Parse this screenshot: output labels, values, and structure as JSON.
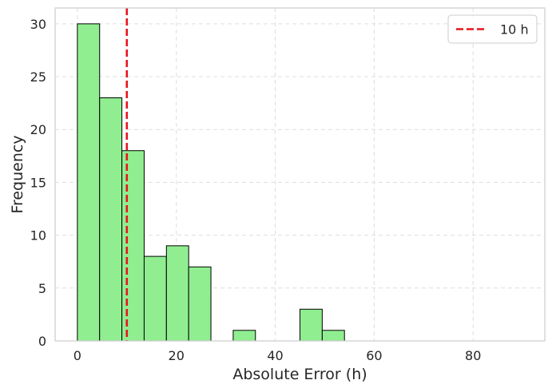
{
  "chart_data": {
    "type": "bar",
    "subtype": "histogram",
    "xlabel": "Absolute Error (h)",
    "ylabel": "Frequency",
    "xlim": [
      -4.5,
      94.5
    ],
    "ylim": [
      0,
      31.5
    ],
    "xticks": [
      0,
      20,
      40,
      60,
      80
    ],
    "yticks": [
      0,
      5,
      10,
      15,
      20,
      25,
      30
    ],
    "grid": true,
    "grid_style": "dashed",
    "bar_color": "#90ee90",
    "bar_edge_color": "#000000",
    "bins": [
      {
        "x0": 0.0,
        "x1": 4.5,
        "count": 30
      },
      {
        "x0": 4.5,
        "x1": 9.0,
        "count": 23
      },
      {
        "x0": 9.0,
        "x1": 13.5,
        "count": 18
      },
      {
        "x0": 13.5,
        "x1": 18.0,
        "count": 8
      },
      {
        "x0": 18.0,
        "x1": 22.5,
        "count": 9
      },
      {
        "x0": 22.5,
        "x1": 27.0,
        "count": 7
      },
      {
        "x0": 27.0,
        "x1": 31.5,
        "count": 0
      },
      {
        "x0": 31.5,
        "x1": 36.0,
        "count": 1
      },
      {
        "x0": 36.0,
        "x1": 40.5,
        "count": 0
      },
      {
        "x0": 40.5,
        "x1": 45.0,
        "count": 0
      },
      {
        "x0": 45.0,
        "x1": 49.5,
        "count": 3
      },
      {
        "x0": 49.5,
        "x1": 54.0,
        "count": 1
      },
      {
        "x0": 54.0,
        "x1": 58.5,
        "count": 0
      },
      {
        "x0": 58.5,
        "x1": 63.0,
        "count": 0
      },
      {
        "x0": 63.0,
        "x1": 67.5,
        "count": 0
      },
      {
        "x0": 67.5,
        "x1": 72.0,
        "count": 0
      },
      {
        "x0": 72.0,
        "x1": 76.5,
        "count": 0
      },
      {
        "x0": 76.5,
        "x1": 81.0,
        "count": 0
      },
      {
        "x0": 81.0,
        "x1": 85.5,
        "count": 0
      },
      {
        "x0": 85.5,
        "x1": 90.0,
        "count": 0
      }
    ],
    "reference_line": {
      "x": 10,
      "label": "10 h",
      "color": "#e8141c",
      "style": "dashed"
    },
    "legend": {
      "placement": "top-right",
      "entries": [
        "10 h"
      ]
    }
  }
}
